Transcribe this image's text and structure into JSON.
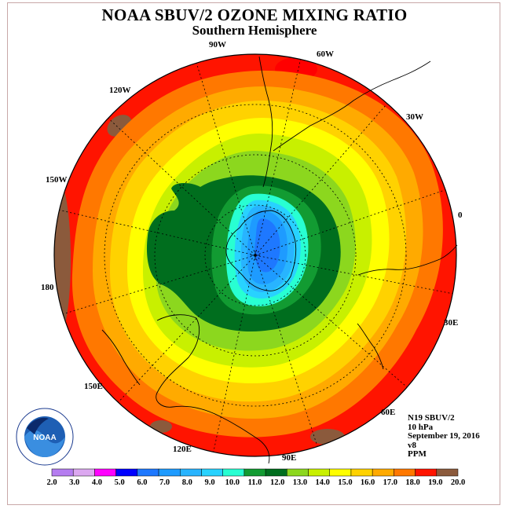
{
  "title": "NOAA SBUV/2 OZONE MIXING RATIO",
  "subtitle": "Southern Hemisphere",
  "longitude_labels": [
    "90W",
    "60W",
    "30W",
    "0",
    "30E",
    "60E",
    "90E",
    "120E",
    "150E",
    "180",
    "150W",
    "120W"
  ],
  "info": {
    "instrument": "N19 SBUV/2",
    "level": "10 hPa",
    "date": "September 19, 2016",
    "version": "v8",
    "units": "PPM"
  },
  "logo_text": "NOAA",
  "colorbar": {
    "labels": [
      "2.0",
      "3.0",
      "4.0",
      "5.0",
      "6.0",
      "7.0",
      "8.0",
      "9.0",
      "10.0",
      "11.0",
      "12.0",
      "13.0",
      "14.0",
      "15.0",
      "16.0",
      "17.0",
      "18.0",
      "19.0",
      "20.0"
    ],
    "colors": [
      "#b57df0",
      "#dca8f0",
      "#ff00ff",
      "#0000ff",
      "#1e78ff",
      "#1e9bff",
      "#28b4ff",
      "#28d2ff",
      "#28ffd2",
      "#129b32",
      "#006e1e",
      "#8cd71e",
      "#c8f000",
      "#ffff00",
      "#ffd200",
      "#ffaa00",
      "#ff7800",
      "#ff1400",
      "#8b5a3c"
    ]
  },
  "ozone_field": {
    "pole_value_ppm": 6.5,
    "outer_value_ppm": 19.0
  }
}
